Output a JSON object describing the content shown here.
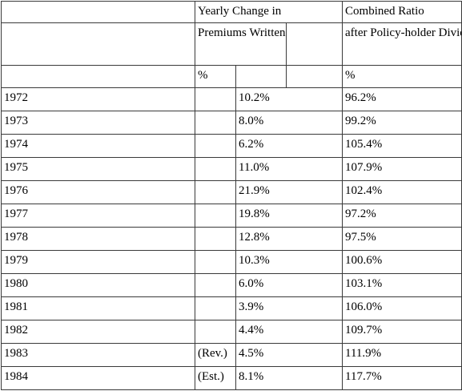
{
  "header": {
    "group1": "Yearly Change in",
    "group2": "Combined Ratio",
    "sub1": "Premiums Written",
    "sub2": "after Policy-holder Dividends",
    "unit1": "%",
    "unit2": "%"
  },
  "rows": [
    {
      "year": "1972",
      "note": "",
      "change": "10.2%",
      "ratio": "96.2%"
    },
    {
      "year": "1973",
      "note": "",
      "change": "8.0%",
      "ratio": "99.2%"
    },
    {
      "year": "1974",
      "note": "",
      "change": "6.2%",
      "ratio": "105.4%"
    },
    {
      "year": "1975",
      "note": "",
      "change": "11.0%",
      "ratio": "107.9%"
    },
    {
      "year": "1976",
      "note": "",
      "change": "21.9%",
      "ratio": "102.4%"
    },
    {
      "year": "1977",
      "note": "",
      "change": "19.8%",
      "ratio": "97.2%"
    },
    {
      "year": "1978",
      "note": "",
      "change": "12.8%",
      "ratio": "97.5%"
    },
    {
      "year": "1979",
      "note": "",
      "change": "10.3%",
      "ratio": "100.6%"
    },
    {
      "year": "1980",
      "note": "",
      "change": "6.0%",
      "ratio": "103.1%"
    },
    {
      "year": "1981",
      "note": "",
      "change": "3.9%",
      "ratio": "106.0%"
    },
    {
      "year": "1982",
      "note": "",
      "change": "4.4%",
      "ratio": "109.7%"
    },
    {
      "year": "1983",
      "note": "(Rev.)",
      "change": "4.5%",
      "ratio": "111.9%"
    },
    {
      "year": "1984",
      "note": "(Est.)",
      "change": "8.1%",
      "ratio": "117.7%"
    }
  ]
}
